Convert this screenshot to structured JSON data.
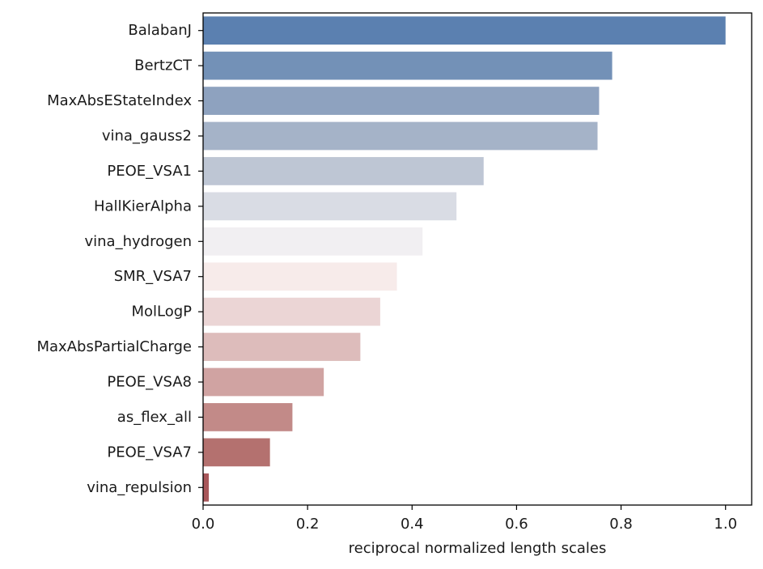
{
  "chart_data": {
    "type": "bar",
    "orientation": "horizontal",
    "title": "",
    "xlabel": "reciprocal normalized length scales",
    "ylabel": "",
    "xlim": [
      0,
      1.05
    ],
    "xticks": [
      0.0,
      0.2,
      0.4,
      0.6,
      0.8,
      1.0
    ],
    "xtick_labels": [
      "0.0",
      "0.2",
      "0.4",
      "0.6",
      "0.8",
      "1.0"
    ],
    "grid": false,
    "legend": "none",
    "categories": [
      "BalabanJ",
      "BertzCT",
      "MaxAbsEStateIndex",
      "vina_gauss2",
      "PEOE_VSA1",
      "HallKierAlpha",
      "vina_hydrogen",
      "SMR_VSA7",
      "MolLogP",
      "MaxAbsPartialCharge",
      "PEOE_VSA8",
      "as_flex_all",
      "PEOE_VSA7",
      "vina_repulsion"
    ],
    "values": [
      1.0,
      0.783,
      0.758,
      0.755,
      0.537,
      0.485,
      0.42,
      0.371,
      0.339,
      0.301,
      0.231,
      0.171,
      0.128,
      0.011
    ],
    "colors": [
      "#5b80b0",
      "#7391b7",
      "#8ea2bf",
      "#a5b3c8",
      "#bec6d4",
      "#d9dce4",
      "#f1eff2",
      "#f7ebea",
      "#ebd5d5",
      "#ddbcbb",
      "#d0a3a2",
      "#c28a88",
      "#b4716f",
      "#a8575a"
    ]
  }
}
